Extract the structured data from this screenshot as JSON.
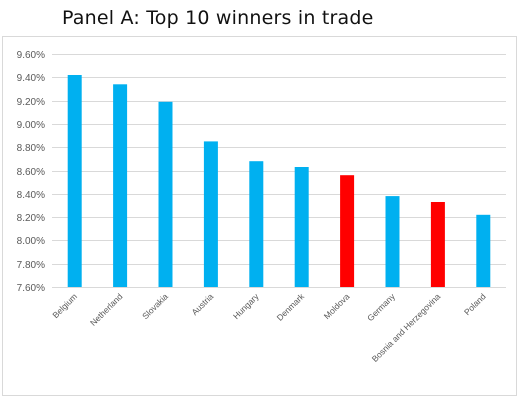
{
  "panel_title": "Panel A: Top 10 winners in trade",
  "colors": {
    "default_bar": "#00b0f0",
    "highlight_bar": "#ff0000",
    "gridline": "#d9d9d9",
    "axis_text": "#595959"
  },
  "chart_data": {
    "type": "bar",
    "title": "",
    "xlabel": "",
    "ylabel": "",
    "categories": [
      "Belgium",
      "Netherland",
      "Slovakia",
      "Austria",
      "Hungary",
      "Denmark",
      "Moldova",
      "Germany",
      "Bosnia and Herzegovina",
      "Poland"
    ],
    "values": [
      9.42,
      9.34,
      9.19,
      8.85,
      8.68,
      8.63,
      8.56,
      8.38,
      8.33,
      8.22
    ],
    "highlighted": [
      "Moldova",
      "Bosnia and Herzegovina"
    ],
    "ylim": [
      7.6,
      9.6
    ],
    "y_ticks": [
      7.6,
      7.8,
      8.0,
      8.2,
      8.4,
      8.6,
      8.8,
      9.0,
      9.2,
      9.4,
      9.6
    ],
    "y_tick_labels": [
      "7.60%",
      "7.80%",
      "8.00%",
      "8.20%",
      "8.40%",
      "8.60%",
      "8.80%",
      "9.00%",
      "9.20%",
      "9.40%",
      "9.60%"
    ],
    "grid": true,
    "legend": "none"
  }
}
